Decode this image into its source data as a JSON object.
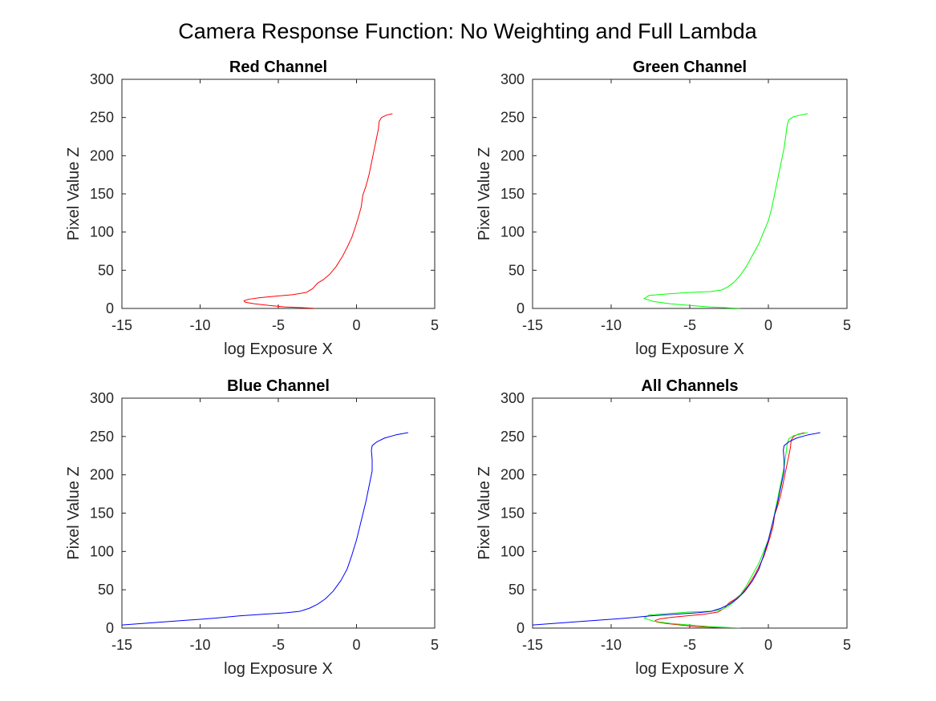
{
  "figure": {
    "title": "Camera Response Function: No Weighting and Full Lambda"
  },
  "chart_data": [
    {
      "type": "line",
      "title": "Red Channel",
      "xlabel": "log Exposure X",
      "ylabel": "Pixel Value Z",
      "xlim": [
        -15,
        5
      ],
      "ylim": [
        0,
        300
      ],
      "xticks": [
        "-15",
        "-10",
        "-5",
        "0",
        "5"
      ],
      "yticks": [
        "0",
        "50",
        "100",
        "150",
        "200",
        "250",
        "300"
      ],
      "grid": false,
      "series": [
        {
          "color": "#ff0000",
          "x": [
            -2.6,
            -3.5,
            -4.6,
            -5.6,
            -6.5,
            -7.1,
            -7.2,
            -6.9,
            -6.2,
            -5.2,
            -4.1,
            -3.2,
            -2.8,
            -2.5,
            -2.1,
            -1.7,
            -1.3,
            -0.9,
            -0.6,
            -0.3,
            -0.1,
            0.1,
            0.3,
            0.4,
            0.6,
            0.8,
            0.95,
            1.1,
            1.2,
            1.3,
            1.4,
            1.45,
            1.6,
            1.9,
            2.3
          ],
          "y": [
            0,
            1,
            2,
            4,
            6,
            8,
            10,
            12,
            14,
            16,
            18,
            21,
            26,
            33,
            38,
            45,
            55,
            68,
            80,
            93,
            105,
            118,
            133,
            148,
            160,
            175,
            190,
            205,
            215,
            225,
            235,
            245,
            250,
            253,
            255
          ]
        }
      ]
    },
    {
      "type": "line",
      "title": "Green Channel",
      "xlabel": "log Exposure X",
      "ylabel": "Pixel Value Z",
      "xlim": [
        -15,
        5
      ],
      "ylim": [
        0,
        300
      ],
      "xticks": [
        "-15",
        "-10",
        "-5",
        "0",
        "5"
      ],
      "yticks": [
        "0",
        "50",
        "100",
        "150",
        "200",
        "250",
        "300"
      ],
      "grid": false,
      "series": [
        {
          "color": "#00ff00",
          "x": [
            -1.8,
            -2.8,
            -3.8,
            -5.0,
            -6.2,
            -7.3,
            -7.9,
            -7.6,
            -6.4,
            -5.0,
            -3.7,
            -3.0,
            -2.6,
            -2.2,
            -1.8,
            -1.4,
            -1.0,
            -0.6,
            -0.3,
            0.0,
            0.2,
            0.4,
            0.6,
            0.8,
            1.0,
            1.1,
            1.2,
            1.3,
            1.6,
            2.0,
            2.5
          ],
          "y": [
            0,
            1,
            2,
            4,
            6,
            9,
            13,
            17,
            19,
            21,
            22,
            24,
            28,
            34,
            43,
            55,
            70,
            85,
            100,
            115,
            130,
            150,
            170,
            190,
            210,
            225,
            240,
            247,
            251,
            253,
            255
          ]
        }
      ]
    },
    {
      "type": "line",
      "title": "Blue Channel",
      "xlabel": "log Exposure X",
      "ylabel": "Pixel Value Z",
      "xlim": [
        -15,
        5
      ],
      "ylim": [
        0,
        300
      ],
      "xticks": [
        "-15",
        "-10",
        "-5",
        "0",
        "5"
      ],
      "yticks": [
        "0",
        "50",
        "100",
        "150",
        "200",
        "250",
        "300"
      ],
      "grid": false,
      "series": [
        {
          "color": "#0000ff",
          "x": [
            -15.0,
            -13.0,
            -11.0,
            -9.0,
            -7.5,
            -6.0,
            -4.5,
            -3.6,
            -3.0,
            -2.5,
            -2.0,
            -1.5,
            -1.0,
            -0.6,
            -0.3,
            0.0,
            0.3,
            0.6,
            0.8,
            1.0,
            1.0,
            0.95,
            1.0,
            1.3,
            1.8,
            2.5,
            3.3
          ],
          "y": [
            4,
            7,
            10,
            13,
            16,
            18,
            20,
            22,
            26,
            31,
            38,
            48,
            62,
            77,
            95,
            115,
            140,
            165,
            185,
            205,
            220,
            232,
            238,
            243,
            248,
            252,
            255
          ]
        }
      ]
    },
    {
      "type": "line",
      "title": "All Channels",
      "xlabel": "log Exposure X",
      "ylabel": "Pixel Value Z",
      "xlim": [
        -15,
        5
      ],
      "ylim": [
        0,
        300
      ],
      "xticks": [
        "-15",
        "-10",
        "-5",
        "0",
        "5"
      ],
      "yticks": [
        "0",
        "50",
        "100",
        "150",
        "200",
        "250",
        "300"
      ],
      "grid": false,
      "series": [
        {
          "color": "#ff0000",
          "x": [
            -2.6,
            -3.5,
            -4.6,
            -5.6,
            -6.5,
            -7.1,
            -7.2,
            -6.9,
            -6.2,
            -5.2,
            -4.1,
            -3.2,
            -2.8,
            -2.5,
            -2.1,
            -1.7,
            -1.3,
            -0.9,
            -0.6,
            -0.3,
            -0.1,
            0.1,
            0.3,
            0.4,
            0.6,
            0.8,
            0.95,
            1.1,
            1.2,
            1.3,
            1.4,
            1.45,
            1.6,
            1.9,
            2.3
          ],
          "y": [
            0,
            1,
            2,
            4,
            6,
            8,
            10,
            12,
            14,
            16,
            18,
            21,
            26,
            33,
            38,
            45,
            55,
            68,
            80,
            93,
            105,
            118,
            133,
            148,
            160,
            175,
            190,
            205,
            215,
            225,
            235,
            245,
            250,
            253,
            255
          ]
        },
        {
          "color": "#00ff00",
          "x": [
            -1.8,
            -2.8,
            -3.8,
            -5.0,
            -6.2,
            -7.3,
            -7.9,
            -7.6,
            -6.4,
            -5.0,
            -3.7,
            -3.0,
            -2.6,
            -2.2,
            -1.8,
            -1.4,
            -1.0,
            -0.6,
            -0.3,
            0.0,
            0.2,
            0.4,
            0.6,
            0.8,
            1.0,
            1.1,
            1.2,
            1.3,
            1.6,
            2.0,
            2.5
          ],
          "y": [
            0,
            1,
            2,
            4,
            6,
            9,
            13,
            17,
            19,
            21,
            22,
            24,
            28,
            34,
            43,
            55,
            70,
            85,
            100,
            115,
            130,
            150,
            170,
            190,
            210,
            225,
            240,
            247,
            251,
            253,
            255
          ]
        },
        {
          "color": "#0000ff",
          "x": [
            -15.0,
            -13.0,
            -11.0,
            -9.0,
            -7.5,
            -6.0,
            -4.5,
            -3.6,
            -3.0,
            -2.5,
            -2.0,
            -1.5,
            -1.0,
            -0.6,
            -0.3,
            0.0,
            0.3,
            0.6,
            0.8,
            1.0,
            1.0,
            0.95,
            1.0,
            1.3,
            1.8,
            2.5,
            3.3
          ],
          "y": [
            4,
            7,
            10,
            13,
            16,
            18,
            20,
            22,
            26,
            31,
            38,
            48,
            62,
            77,
            95,
            115,
            140,
            165,
            185,
            205,
            220,
            232,
            238,
            243,
            248,
            252,
            255
          ]
        }
      ]
    }
  ]
}
